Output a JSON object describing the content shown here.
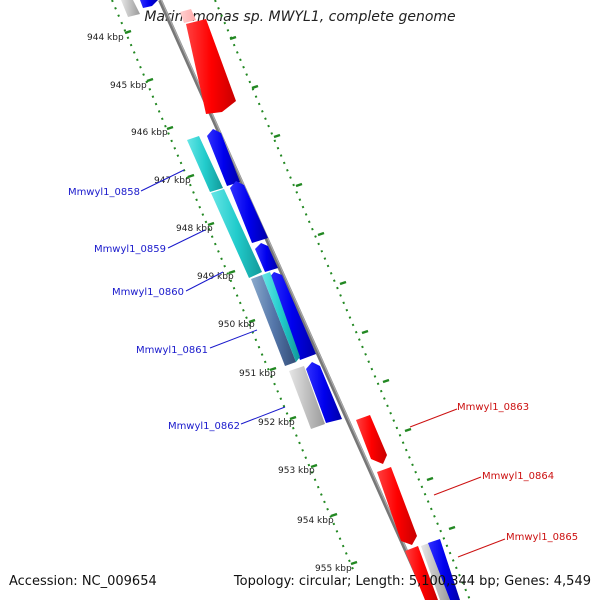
{
  "title": "Marinomonas sp. MWYL1, complete genome",
  "footer": {
    "accession": "Accession: NC_009654",
    "info": "Topology: circular; Length: 5,100,344 bp; Genes: 4,549"
  },
  "ticks": [
    {
      "label": "944 kbp",
      "kb": 944
    },
    {
      "label": "945 kbp",
      "kb": 945
    },
    {
      "label": "946 kbp",
      "kb": 946
    },
    {
      "label": "947 kbp",
      "kb": 947
    },
    {
      "label": "948 kbp",
      "kb": 948
    },
    {
      "label": "949 kbp",
      "kb": 949
    },
    {
      "label": "950 kbp",
      "kb": 950
    },
    {
      "label": "951 kbp",
      "kb": 951
    },
    {
      "label": "952 kbp",
      "kb": 952
    },
    {
      "label": "953 kbp",
      "kb": 953
    },
    {
      "label": "954 kbp",
      "kb": 954
    },
    {
      "label": "955 kbp",
      "kb": 955
    }
  ],
  "gene_labels": [
    {
      "name": "Mmwyl1_0858",
      "color": "#1a1acc"
    },
    {
      "name": "Mmwyl1_0859",
      "color": "#1a1acc"
    },
    {
      "name": "Mmwyl1_0860",
      "color": "#1a1acc"
    },
    {
      "name": "Mmwyl1_0861",
      "color": "#1a1acc"
    },
    {
      "name": "Mmwyl1_0862",
      "color": "#1a1acc"
    },
    {
      "name": "Mmwyl1_0863",
      "color": "#cc1111"
    },
    {
      "name": "Mmwyl1_0864",
      "color": "#cc1111"
    },
    {
      "name": "Mmwyl1_0865",
      "color": "#cc1111"
    }
  ],
  "colors": {
    "forward_cds": "#ff0000",
    "reverse_cds": "#0000ee",
    "rna_cyan": "#22cccc",
    "pseudo_grey": "#bbbbbb",
    "backbone": "#888888",
    "tick_green": "#228822"
  }
}
